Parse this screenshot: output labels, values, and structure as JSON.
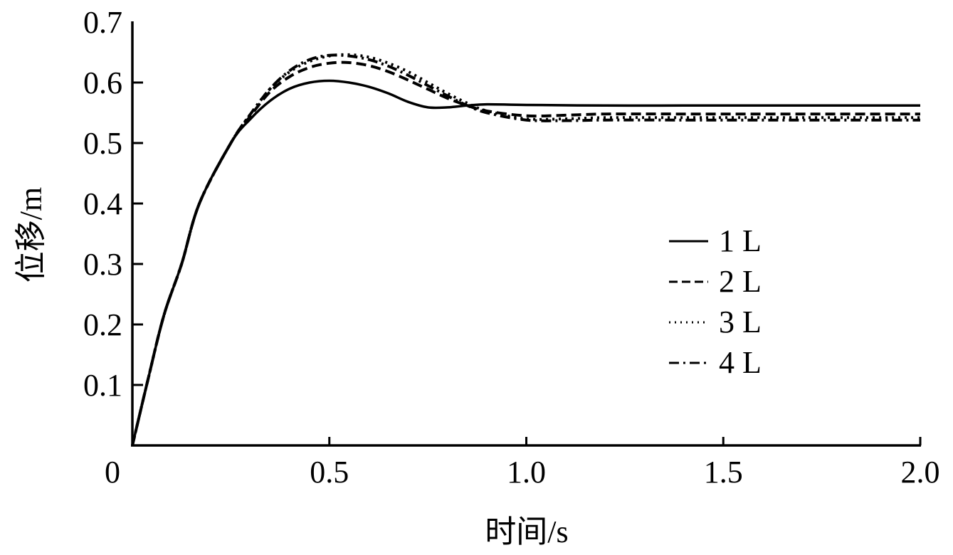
{
  "chart_data": {
    "type": "line",
    "title": "",
    "xlabel": "时间/s",
    "ylabel": "位移/m",
    "xlim": [
      0,
      2.0
    ],
    "ylim": [
      0,
      0.7
    ],
    "xticks": [
      0,
      0.5,
      1.0,
      1.5,
      2.0
    ],
    "xtick_labels": [
      "0",
      "0.5",
      "1.0",
      "1.5",
      "2.0"
    ],
    "yticks": [
      0.1,
      0.2,
      0.3,
      0.4,
      0.5,
      0.6,
      0.7
    ],
    "ytick_labels": [
      "0.1",
      "0.2",
      "0.3",
      "0.4",
      "0.5",
      "0.6",
      "0.7"
    ],
    "grid": false,
    "legend_position": "right-center",
    "series": [
      {
        "name": "1 L",
        "style": "solid",
        "x": [
          0,
          0.04,
          0.08,
          0.125,
          0.17,
          0.25,
          0.3,
          0.35,
          0.4,
          0.45,
          0.5,
          0.55,
          0.6,
          0.65,
          0.7,
          0.75,
          0.8,
          0.85,
          0.9,
          1.0,
          1.2,
          1.4,
          1.6,
          1.8,
          2.0
        ],
        "y": [
          0,
          0.11,
          0.215,
          0.3,
          0.4,
          0.5,
          0.54,
          0.57,
          0.59,
          0.6,
          0.603,
          0.6,
          0.593,
          0.582,
          0.568,
          0.559,
          0.559,
          0.562,
          0.564,
          0.563,
          0.562,
          0.562,
          0.562,
          0.562,
          0.562
        ]
      },
      {
        "name": "2 L",
        "style": "dashed",
        "x": [
          0,
          0.04,
          0.08,
          0.125,
          0.17,
          0.25,
          0.3,
          0.35,
          0.4,
          0.45,
          0.5,
          0.55,
          0.6,
          0.65,
          0.7,
          0.75,
          0.8,
          0.85,
          0.9,
          1.0,
          1.1,
          1.2,
          1.4,
          1.6,
          1.8,
          2.0
        ],
        "y": [
          0,
          0.11,
          0.215,
          0.3,
          0.4,
          0.5,
          0.545,
          0.585,
          0.61,
          0.625,
          0.632,
          0.633,
          0.628,
          0.618,
          0.604,
          0.589,
          0.574,
          0.562,
          0.553,
          0.545,
          0.546,
          0.548,
          0.548,
          0.548,
          0.548,
          0.548
        ]
      },
      {
        "name": "3 L",
        "style": "dotted",
        "x": [
          0,
          0.04,
          0.08,
          0.125,
          0.17,
          0.25,
          0.3,
          0.35,
          0.4,
          0.45,
          0.5,
          0.55,
          0.6,
          0.65,
          0.7,
          0.75,
          0.8,
          0.85,
          0.9,
          1.0,
          1.1,
          1.2,
          1.4,
          1.6,
          1.8,
          2.0
        ],
        "y": [
          0,
          0.11,
          0.215,
          0.3,
          0.4,
          0.5,
          0.548,
          0.59,
          0.618,
          0.635,
          0.644,
          0.646,
          0.642,
          0.632,
          0.618,
          0.6,
          0.582,
          0.566,
          0.553,
          0.54,
          0.54,
          0.542,
          0.542,
          0.542,
          0.542,
          0.542
        ]
      },
      {
        "name": "4 L",
        "style": "dashdot",
        "x": [
          0,
          0.04,
          0.08,
          0.125,
          0.17,
          0.25,
          0.3,
          0.35,
          0.4,
          0.45,
          0.5,
          0.55,
          0.6,
          0.65,
          0.7,
          0.75,
          0.8,
          0.85,
          0.9,
          1.0,
          1.1,
          1.2,
          1.4,
          1.6,
          1.8,
          2.0
        ],
        "y": [
          0,
          0.11,
          0.215,
          0.3,
          0.4,
          0.5,
          0.548,
          0.59,
          0.62,
          0.638,
          0.645,
          0.644,
          0.638,
          0.627,
          0.612,
          0.595,
          0.578,
          0.562,
          0.55,
          0.538,
          0.537,
          0.538,
          0.538,
          0.538,
          0.538,
          0.538
        ]
      }
    ]
  },
  "legend": {
    "items": [
      "1 L",
      "2 L",
      "3 L",
      "4 L"
    ]
  }
}
